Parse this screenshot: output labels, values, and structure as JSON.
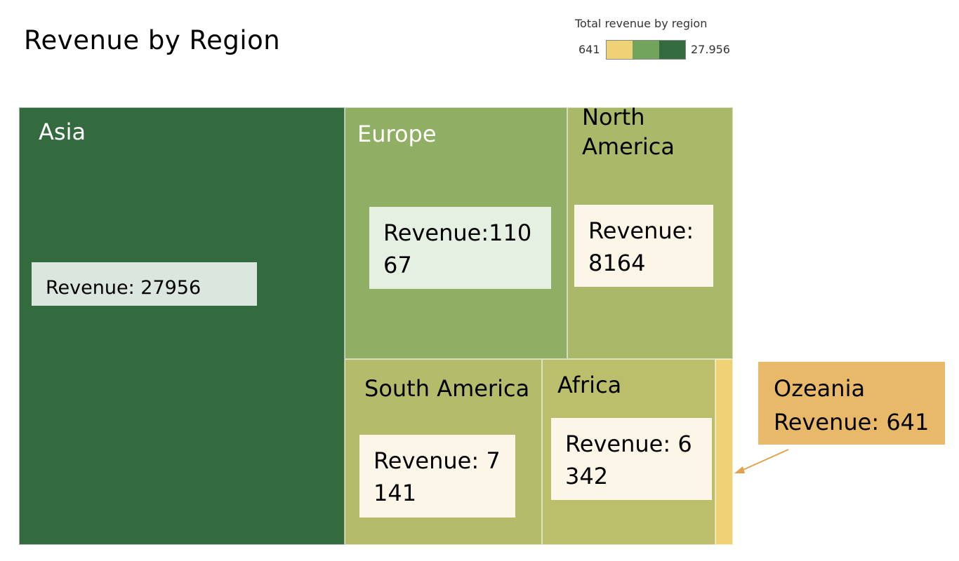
{
  "page": {
    "title": "Revenue by Region"
  },
  "legend": {
    "title": "Total revenue by region",
    "min_label": "641",
    "max_label": "27.956",
    "colors": [
      "#efd276",
      "#72a45e",
      "#336b3e"
    ]
  },
  "chart_data": {
    "type": "treemap",
    "title": "Revenue by Region",
    "color_scale": {
      "min": 641,
      "max": 27956,
      "colors": [
        "#efd276",
        "#72a45e",
        "#336b3e"
      ]
    },
    "tiles": [
      {
        "region": "Asia",
        "name_label": "Asia",
        "revenue_label": "Revenue: 27956",
        "value": 27956
      },
      {
        "region": "Europe",
        "name_label": "Europe",
        "revenue_label": "Revenue:11067",
        "value": 11067
      },
      {
        "region": "North America",
        "name_label": "North\nAmerica",
        "revenue_label": "Revenue: 8164",
        "value": 8164
      },
      {
        "region": "South America",
        "name_label": "South America",
        "revenue_label": "Revenue: 7141",
        "value": 7141
      },
      {
        "region": "Africa",
        "name_label": "Africa",
        "revenue_label": "Revenue: 6342",
        "value": 6342
      },
      {
        "region": "Ozeania",
        "name_label": "",
        "revenue_label": "",
        "value": 641
      }
    ],
    "callout": {
      "region": "Ozeania",
      "line1": "Ozeania",
      "line2": "Revenue: 641"
    }
  }
}
